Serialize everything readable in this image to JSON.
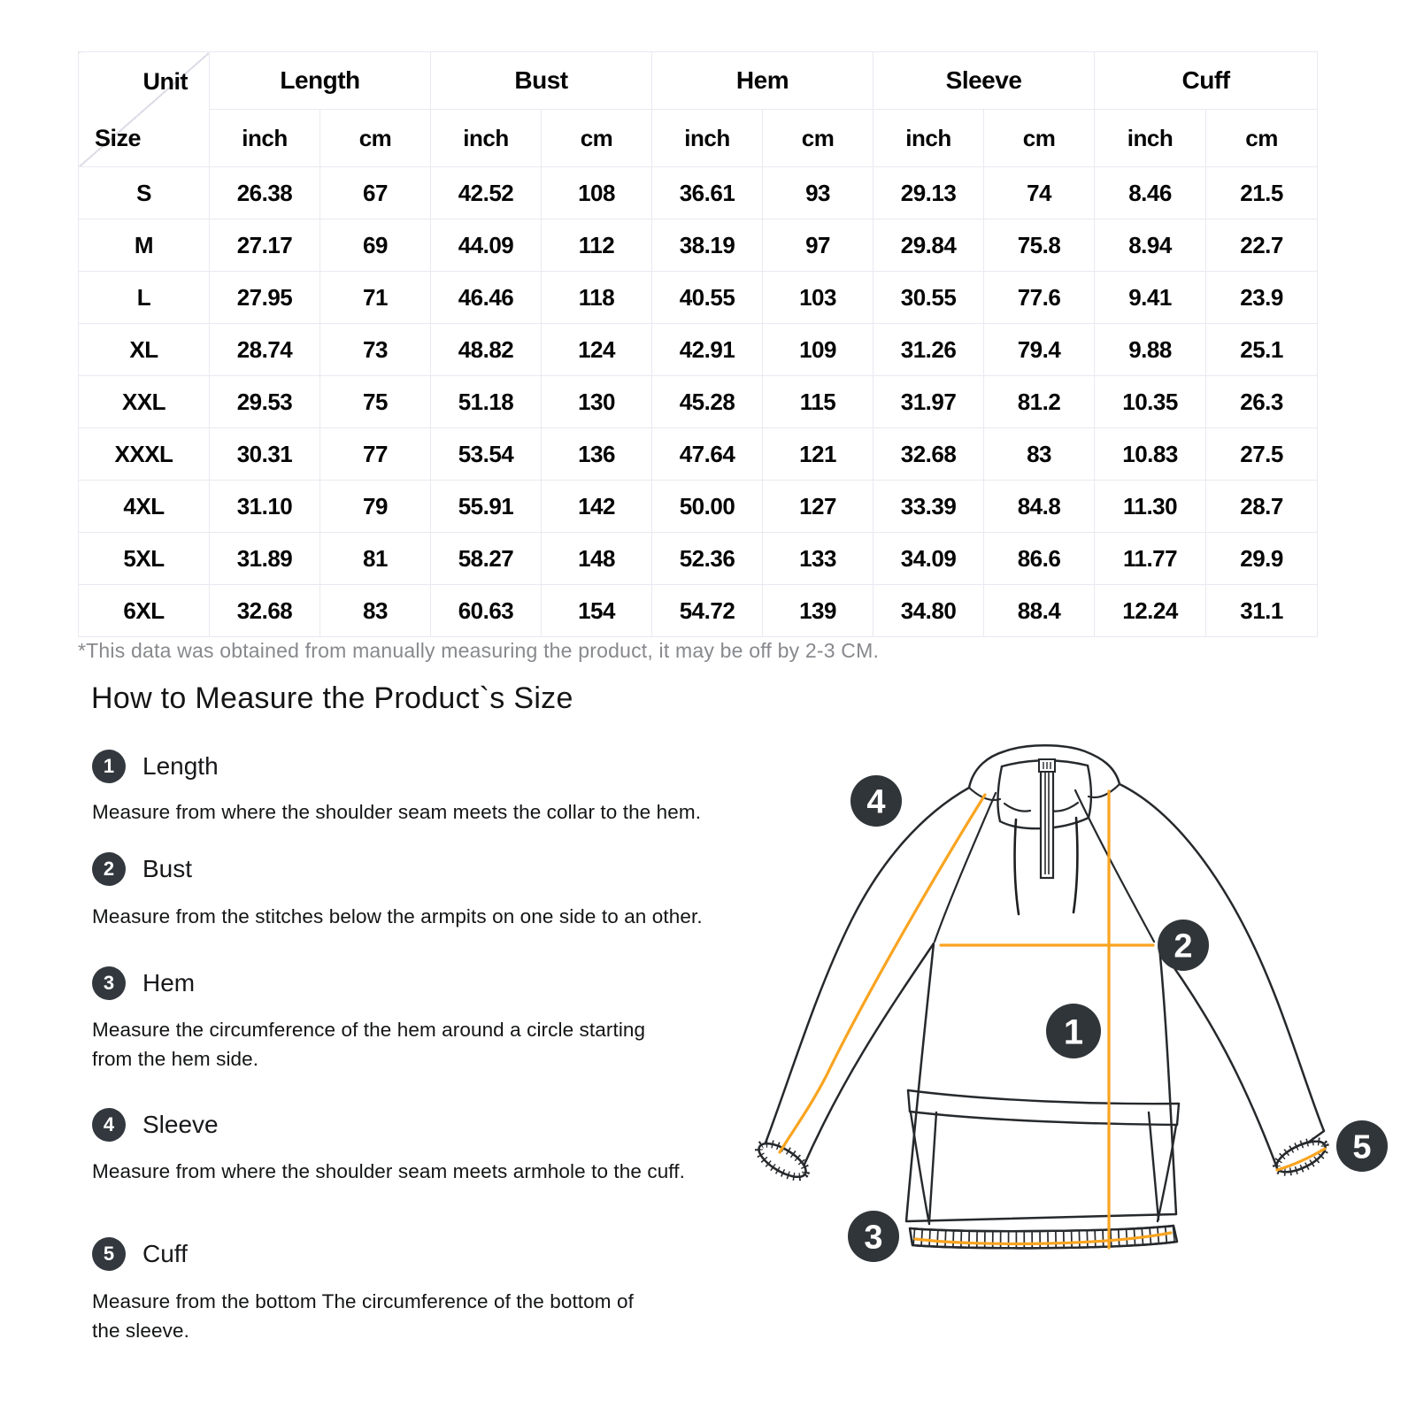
{
  "size_chart": {
    "corner": {
      "top": "Unit",
      "bottom": "Size"
    },
    "groups": [
      {
        "label": "Length"
      },
      {
        "label": "Bust"
      },
      {
        "label": "Hem"
      },
      {
        "label": "Sleeve"
      },
      {
        "label": "Cuff"
      }
    ],
    "unit_headers": [
      "inch",
      "cm",
      "inch",
      "cm",
      "inch",
      "cm",
      "inch",
      "cm",
      "inch",
      "cm"
    ],
    "rows": [
      {
        "size": "S",
        "values": [
          "26.38",
          "67",
          "42.52",
          "108",
          "36.61",
          "93",
          "29.13",
          "74",
          "8.46",
          "21.5"
        ]
      },
      {
        "size": "M",
        "values": [
          "27.17",
          "69",
          "44.09",
          "112",
          "38.19",
          "97",
          "29.84",
          "75.8",
          "8.94",
          "22.7"
        ]
      },
      {
        "size": "L",
        "values": [
          "27.95",
          "71",
          "46.46",
          "118",
          "40.55",
          "103",
          "30.55",
          "77.6",
          "9.41",
          "23.9"
        ]
      },
      {
        "size": "XL",
        "values": [
          "28.74",
          "73",
          "48.82",
          "124",
          "42.91",
          "109",
          "31.26",
          "79.4",
          "9.88",
          "25.1"
        ]
      },
      {
        "size": "XXL",
        "values": [
          "29.53",
          "75",
          "51.18",
          "130",
          "45.28",
          "115",
          "31.97",
          "81.2",
          "10.35",
          "26.3"
        ]
      },
      {
        "size": "XXXL",
        "values": [
          "30.31",
          "77",
          "53.54",
          "136",
          "47.64",
          "121",
          "32.68",
          "83",
          "10.83",
          "27.5"
        ]
      },
      {
        "size": "4XL",
        "values": [
          "31.10",
          "79",
          "55.91",
          "142",
          "50.00",
          "127",
          "33.39",
          "84.8",
          "11.30",
          "28.7"
        ]
      },
      {
        "size": "5XL",
        "values": [
          "31.89",
          "81",
          "58.27",
          "148",
          "52.36",
          "133",
          "34.09",
          "86.6",
          "11.77",
          "29.9"
        ]
      },
      {
        "size": "6XL",
        "values": [
          "32.68",
          "83",
          "60.63",
          "154",
          "54.72",
          "139",
          "34.80",
          "88.4",
          "12.24",
          "31.1"
        ]
      }
    ]
  },
  "footnote": "*This data was obtained from manually measuring the product, it may be off by 2-3 CM.",
  "section": {
    "heading": "How to Measure the Product`s Size",
    "items": [
      {
        "num": "1",
        "label": "Length",
        "desc_lines": [
          "Measure from where the shoulder seam meets the collar to the hem."
        ]
      },
      {
        "num": "2",
        "label": "Bust",
        "desc_lines": [
          "Measure from the stitches below the armpits on one side to an other."
        ]
      },
      {
        "num": "3",
        "label": "Hem",
        "desc_lines": [
          "Measure the circumference of the hem around a circle starting",
          "from the hem side."
        ]
      },
      {
        "num": "4",
        "label": "Sleeve",
        "desc_lines": [
          "Measure from where the shoulder seam meets armhole to the cuff."
        ]
      },
      {
        "num": "5",
        "label": "Cuff",
        "desc_lines": [
          "Measure from the bottom The circumference of the bottom of",
          "the sleeve."
        ]
      }
    ]
  },
  "diagram": {
    "badges": [
      "1",
      "2",
      "3",
      "4",
      "5"
    ],
    "line_color": "#F9A420",
    "badge_color": "#303539",
    "outline_color": "#26292c"
  }
}
